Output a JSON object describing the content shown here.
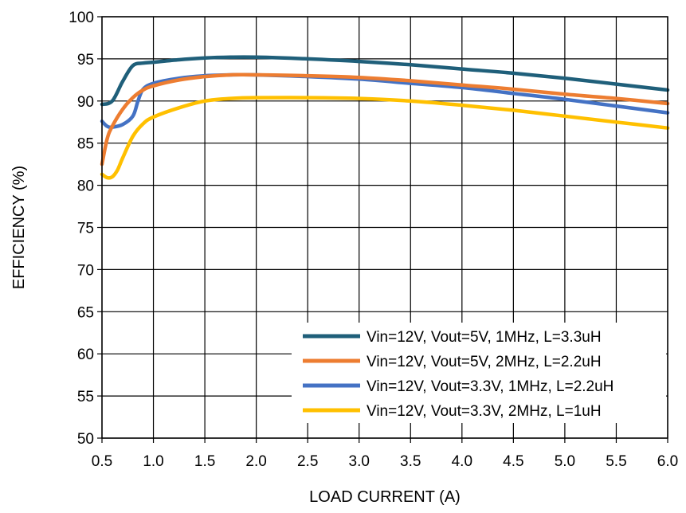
{
  "chart_data": {
    "type": "line",
    "title": "",
    "xlabel": "LOAD CURRENT (A)",
    "ylabel": "EFFICIENCY (%)",
    "xlim": [
      0.5,
      6.0
    ],
    "ylim": [
      50,
      100
    ],
    "xticks": [
      "0.5",
      "1.0",
      "1.5",
      "2.0",
      "2.5",
      "3.0",
      "3.5",
      "4.0",
      "4.5",
      "5.0",
      "5.5",
      "6.0"
    ],
    "yticks": [
      "50",
      "55",
      "60",
      "65",
      "70",
      "75",
      "80",
      "85",
      "90",
      "95",
      "100"
    ],
    "grid": true,
    "legend_position": "bottom-right",
    "series": [
      {
        "name": "Vin=12V, Vout=5V, 1MHz, L=3.3uH",
        "color": "#1f5f7a",
        "points": [
          [
            0.5,
            89.6
          ],
          [
            0.6,
            90.0
          ],
          [
            0.7,
            92.3
          ],
          [
            0.8,
            94.2
          ],
          [
            0.9,
            94.5
          ],
          [
            1.0,
            94.6
          ],
          [
            1.25,
            94.9
          ],
          [
            1.5,
            95.1
          ],
          [
            1.75,
            95.2
          ],
          [
            2.0,
            95.2
          ],
          [
            2.5,
            95.0
          ],
          [
            3.0,
            94.7
          ],
          [
            3.5,
            94.3
          ],
          [
            4.0,
            93.8
          ],
          [
            4.5,
            93.3
          ],
          [
            5.0,
            92.7
          ],
          [
            5.5,
            92.0
          ],
          [
            6.0,
            91.3
          ]
        ]
      },
      {
        "name": "Vin=12V, Vout=5V, 2MHz, L=2.2uH",
        "color": "#ed7d31",
        "points": [
          [
            0.5,
            82.5
          ],
          [
            0.55,
            85.5
          ],
          [
            0.6,
            87.0
          ],
          [
            0.7,
            89.0
          ],
          [
            0.8,
            90.4
          ],
          [
            0.9,
            91.3
          ],
          [
            1.0,
            91.8
          ],
          [
            1.25,
            92.5
          ],
          [
            1.5,
            92.9
          ],
          [
            1.75,
            93.1
          ],
          [
            2.0,
            93.1
          ],
          [
            2.5,
            93.0
          ],
          [
            3.0,
            92.8
          ],
          [
            3.5,
            92.4
          ],
          [
            4.0,
            91.9
          ],
          [
            4.5,
            91.4
          ],
          [
            5.0,
            90.8
          ],
          [
            5.5,
            90.3
          ],
          [
            6.0,
            89.7
          ]
        ]
      },
      {
        "name": "Vin=12V, Vout=3.3V, 1MHz, L=2.2uH",
        "color": "#4472c4",
        "points": [
          [
            0.5,
            87.6
          ],
          [
            0.55,
            87.0
          ],
          [
            0.6,
            86.9
          ],
          [
            0.7,
            87.2
          ],
          [
            0.8,
            88.2
          ],
          [
            0.85,
            90.0
          ],
          [
            0.9,
            91.4
          ],
          [
            1.0,
            92.1
          ],
          [
            1.25,
            92.7
          ],
          [
            1.5,
            93.0
          ],
          [
            1.75,
            93.1
          ],
          [
            2.0,
            93.1
          ],
          [
            2.5,
            92.9
          ],
          [
            3.0,
            92.6
          ],
          [
            3.5,
            92.1
          ],
          [
            4.0,
            91.6
          ],
          [
            4.5,
            90.9
          ],
          [
            5.0,
            90.2
          ],
          [
            5.5,
            89.4
          ],
          [
            6.0,
            88.6
          ]
        ]
      },
      {
        "name": "Vin=12V, Vout=3.3V, 2MHz, L=1uH",
        "color": "#ffc000",
        "points": [
          [
            0.5,
            81.3
          ],
          [
            0.55,
            80.9
          ],
          [
            0.6,
            81.0
          ],
          [
            0.65,
            81.8
          ],
          [
            0.7,
            83.2
          ],
          [
            0.8,
            85.8
          ],
          [
            0.9,
            87.3
          ],
          [
            1.0,
            88.1
          ],
          [
            1.25,
            89.2
          ],
          [
            1.5,
            90.0
          ],
          [
            1.75,
            90.3
          ],
          [
            2.0,
            90.4
          ],
          [
            2.5,
            90.4
          ],
          [
            3.0,
            90.3
          ],
          [
            3.5,
            90.0
          ],
          [
            4.0,
            89.5
          ],
          [
            4.5,
            88.9
          ],
          [
            5.0,
            88.2
          ],
          [
            5.5,
            87.5
          ],
          [
            6.0,
            86.8
          ]
        ]
      }
    ]
  }
}
